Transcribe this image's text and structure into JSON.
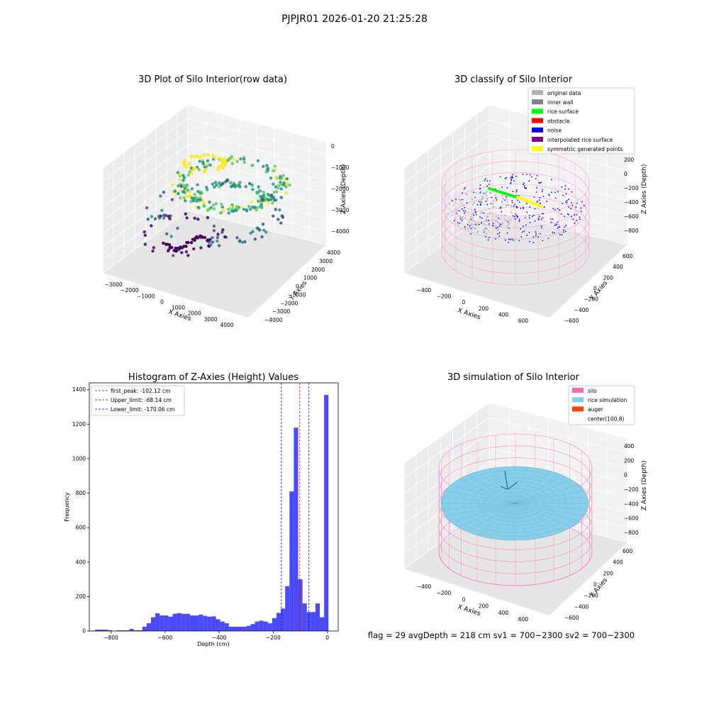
{
  "figure_title": "PJPJR01 2026-01-20 21:25:28",
  "footer": "flag = 29  avgDepth = 218 cm  sv1 = 700~2300  sv2 = 700~2300",
  "chart_data": [
    {
      "id": "raw",
      "type": "scatter3d",
      "title": "3D Plot of Silo Interior(row data)",
      "xlabel": "X Axies",
      "ylabel": "Y Axies",
      "zlabel": "Z Axies (Depth)",
      "x_ticks": [
        "−3000",
        "−2000",
        "−1000",
        "0",
        "1000",
        "2000",
        "3000",
        "4000"
      ],
      "y_ticks": [
        "−4000",
        "−3000",
        "−2000",
        "−1000",
        "0",
        "1000",
        "2000",
        "3000",
        "4000"
      ],
      "z_ticks": [
        "0",
        "−1000",
        "−2000",
        "−3000",
        "−4000"
      ],
      "colormap": [
        "#440154",
        "#3b528b",
        "#21918c",
        "#5ec962",
        "#fde725"
      ]
    },
    {
      "id": "classify",
      "type": "scatter3d",
      "title": "3D classify of Silo Interior",
      "xlabel": "X Axies",
      "ylabel": "Y Axies",
      "zlabel": "Z Axies (Depth)",
      "x_ticks": [
        "−400",
        "−200",
        "0",
        "200",
        "400",
        "600"
      ],
      "y_ticks": [
        "−600",
        "−400",
        "−200",
        "0",
        "200",
        "400",
        "600"
      ],
      "z_ticks": [
        "200",
        "0",
        "−200",
        "−400",
        "−600",
        "−800"
      ],
      "legend": [
        {
          "label": "original data",
          "color": "#b3b3b3"
        },
        {
          "label": "inner wall",
          "color": "#808080"
        },
        {
          "label": "rice surface",
          "color": "#00ff00"
        },
        {
          "label": "obstacle",
          "color": "#ff0000"
        },
        {
          "label": "noise",
          "color": "#0000ff"
        },
        {
          "label": "interpolated rice surface",
          "color": "#800080"
        },
        {
          "label": "symmetric generated points",
          "color": "#ffff00"
        }
      ],
      "silo_color": "#ff88cc"
    },
    {
      "id": "hist",
      "type": "bar",
      "title": "Histogram of Z-Axies (Height) Values",
      "xlabel": "Depth (cm)",
      "ylabel": "Frequency",
      "xlim": [
        -880,
        40
      ],
      "ylim": [
        0,
        1440
      ],
      "x_ticks": [
        -800,
        -600,
        -400,
        -200,
        0
      ],
      "x_tick_labels": [
        "−800",
        "−600",
        "−400",
        "−200",
        "0"
      ],
      "y_ticks": [
        0,
        200,
        400,
        600,
        800,
        1000,
        1200,
        1400
      ],
      "y_tick_labels": [
        "0",
        "200",
        "400",
        "600",
        "800",
        "1000",
        "1200",
        "1400"
      ],
      "bar_color": "#4a4af7",
      "bins": [
        {
          "x0": -860,
          "x1": -844,
          "v": 8
        },
        {
          "x0": -844,
          "x1": -828,
          "v": 8
        },
        {
          "x0": -828,
          "x1": -812,
          "v": 8
        },
        {
          "x0": -812,
          "x1": -796,
          "v": 4
        },
        {
          "x0": -796,
          "x1": -780,
          "v": 0
        },
        {
          "x0": -780,
          "x1": -764,
          "v": 4
        },
        {
          "x0": -764,
          "x1": -748,
          "v": 4
        },
        {
          "x0": -748,
          "x1": -732,
          "v": 4
        },
        {
          "x0": -732,
          "x1": -716,
          "v": 12
        },
        {
          "x0": -716,
          "x1": -700,
          "v": 4
        },
        {
          "x0": -700,
          "x1": -684,
          "v": 4
        },
        {
          "x0": -684,
          "x1": -668,
          "v": 25
        },
        {
          "x0": -668,
          "x1": -652,
          "v": 45
        },
        {
          "x0": -652,
          "x1": -636,
          "v": 80
        },
        {
          "x0": -636,
          "x1": -620,
          "v": 103
        },
        {
          "x0": -620,
          "x1": -604,
          "v": 90
        },
        {
          "x0": -604,
          "x1": -588,
          "v": 90
        },
        {
          "x0": -588,
          "x1": -572,
          "v": 83
        },
        {
          "x0": -572,
          "x1": -556,
          "v": 100
        },
        {
          "x0": -556,
          "x1": -540,
          "v": 104
        },
        {
          "x0": -540,
          "x1": -524,
          "v": 100
        },
        {
          "x0": -524,
          "x1": -508,
          "v": 100
        },
        {
          "x0": -508,
          "x1": -492,
          "v": 90
        },
        {
          "x0": -492,
          "x1": -476,
          "v": 90
        },
        {
          "x0": -476,
          "x1": -460,
          "v": 95
        },
        {
          "x0": -460,
          "x1": -444,
          "v": 88
        },
        {
          "x0": -444,
          "x1": -428,
          "v": 83
        },
        {
          "x0": -428,
          "x1": -412,
          "v": 85
        },
        {
          "x0": -412,
          "x1": -396,
          "v": 68
        },
        {
          "x0": -396,
          "x1": -380,
          "v": 55
        },
        {
          "x0": -380,
          "x1": -364,
          "v": 45
        },
        {
          "x0": -364,
          "x1": -348,
          "v": 25
        },
        {
          "x0": -348,
          "x1": -332,
          "v": 25
        },
        {
          "x0": -332,
          "x1": -316,
          "v": 25
        },
        {
          "x0": -316,
          "x1": -300,
          "v": 25
        },
        {
          "x0": -300,
          "x1": -284,
          "v": 30
        },
        {
          "x0": -284,
          "x1": -268,
          "v": 40
        },
        {
          "x0": -268,
          "x1": -252,
          "v": 55
        },
        {
          "x0": -252,
          "x1": -236,
          "v": 60
        },
        {
          "x0": -236,
          "x1": -220,
          "v": 55
        },
        {
          "x0": -220,
          "x1": -204,
          "v": 45
        },
        {
          "x0": -204,
          "x1": -188,
          "v": 75
        },
        {
          "x0": -188,
          "x1": -172,
          "v": 105
        },
        {
          "x0": -172,
          "x1": -156,
          "v": 130
        },
        {
          "x0": -156,
          "x1": -140,
          "v": 260
        },
        {
          "x0": -140,
          "x1": -124,
          "v": 810
        },
        {
          "x0": -124,
          "x1": -108,
          "v": 1180
        },
        {
          "x0": -108,
          "x1": -92,
          "v": 300
        },
        {
          "x0": -92,
          "x1": -76,
          "v": 160
        },
        {
          "x0": -76,
          "x1": -60,
          "v": 110
        },
        {
          "x0": -60,
          "x1": -44,
          "v": 110
        },
        {
          "x0": -44,
          "x1": -28,
          "v": 160
        },
        {
          "x0": -28,
          "x1": -12,
          "v": 80
        },
        {
          "x0": -12,
          "x1": 4,
          "v": 1370
        }
      ],
      "lines": [
        {
          "label": "first_peak: -102.12 cm",
          "x": -102.12,
          "color": "#ff0000"
        },
        {
          "label": "Upper_limit: -68.14 cm",
          "x": -68.14,
          "color": "#0000ff"
        },
        {
          "label": "Lower_limit: -170.06 cm",
          "x": -170.06,
          "color": "#0000ff"
        }
      ]
    },
    {
      "id": "simulation",
      "type": "surface3d",
      "title": "3D simulation of Silo Interior",
      "xlabel": "X Axies",
      "ylabel": "Y Axies",
      "zlabel": "Z Axies (Depth)",
      "x_ticks": [
        "−400",
        "−200",
        "0",
        "200",
        "400",
        "600"
      ],
      "y_ticks": [
        "−600",
        "−400",
        "−200",
        "0",
        "200",
        "400",
        "600"
      ],
      "z_ticks": [
        "400",
        "200",
        "0",
        "−200",
        "−400",
        "−600",
        "−800"
      ],
      "legend": [
        {
          "label": "silo",
          "color": "#ff69b4"
        },
        {
          "label": "rice simulation",
          "color": "#87ceeb"
        },
        {
          "label": "auger",
          "color": "#ff4500"
        },
        {
          "label": "center(100,8)",
          "color": "#ffffff"
        }
      ]
    }
  ]
}
